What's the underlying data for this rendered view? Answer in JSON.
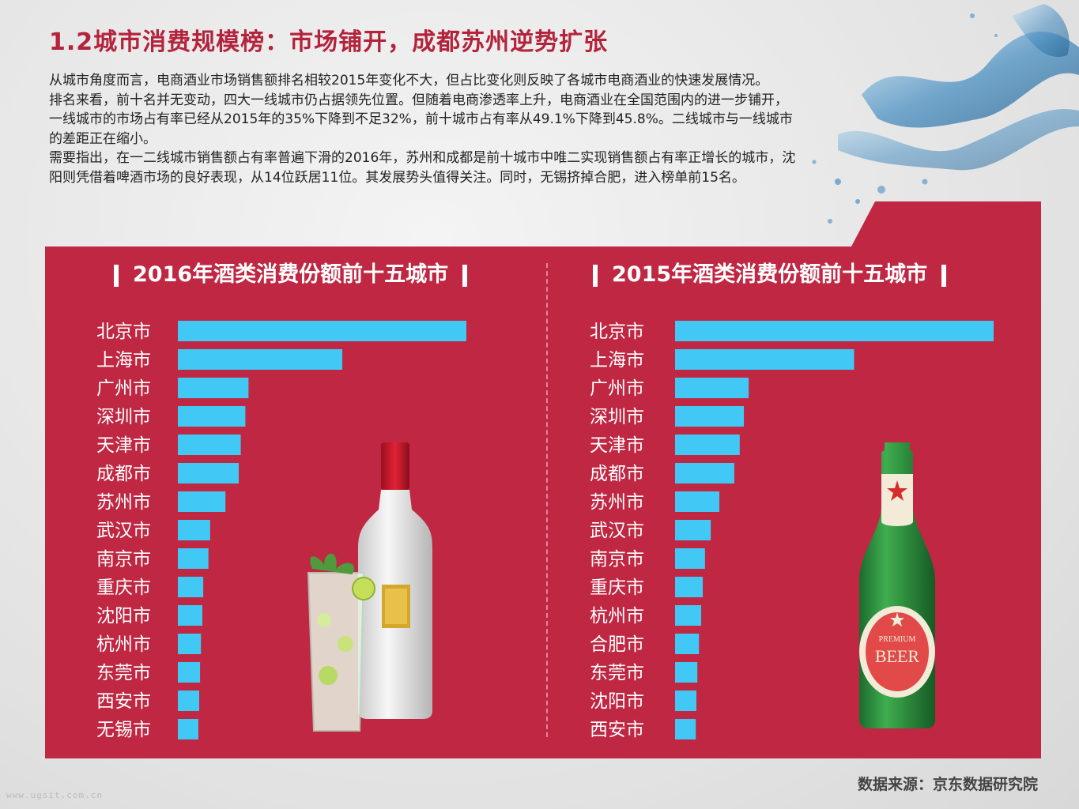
{
  "header": {
    "title": "1.2城市消费规模榜：市场铺开，成都苏州逆势扩张",
    "paragraphs": [
      "从城市角度而言，电商酒业市场销售额排名相较2015年变化不大，但占比变化则反映了各城市电商酒业的快速发展情况。",
      "排名来看，前十名并无变动，四大一线城市仍占据领先位置。但随着电商渗透率上升，电商酒业在全国范围内的进一步铺开，一线城市的市场占有率已经从2015年的35%下降到不足32%，前十城市占有率从49.1%下降到45.8%。二线城市与一线城市的差距正在缩小。",
      "需要指出，在一二线城市销售额占有率普遍下滑的2016年，苏州和成都是前十城市中唯二实现销售额占有率正增长的城市，沈阳则凭借着啤酒市场的良好表现，从14位跃居11位。其发展势头值得关注。同时，无锡挤掉合肥，进入榜单前15名。"
    ]
  },
  "footer": {
    "source": "数据来源：京东数据研究院",
    "watermark": "www.ugsit.com.cn"
  },
  "beer_label": {
    "top": "PREMIUM",
    "main": "BEER"
  },
  "colors": {
    "panel": "#bf2742",
    "bar": "#41c8f5",
    "title": "#b3243c"
  },
  "chart_data": [
    {
      "type": "bar",
      "orientation": "horizontal",
      "title": "2016年酒类消费份额前十五城市",
      "categories": [
        "北京市",
        "上海市",
        "广州市",
        "深圳市",
        "天津市",
        "成都市",
        "苏州市",
        "武汉市",
        "南京市",
        "重庆市",
        "沈阳市",
        "杭州市",
        "东莞市",
        "西安市",
        "无锡市"
      ],
      "values": [
        100,
        57,
        24.5,
        23.4,
        21.8,
        21.1,
        16.5,
        11.2,
        10.6,
        8.8,
        8.5,
        8.0,
        7.7,
        7.4,
        7.1
      ],
      "xlim": [
        0,
        100
      ],
      "grid": false
    },
    {
      "type": "bar",
      "orientation": "horizontal",
      "title": "2015年酒类消费份额前十五城市",
      "categories": [
        "北京市",
        "上海市",
        "广州市",
        "深圳市",
        "天津市",
        "成都市",
        "苏州市",
        "武汉市",
        "南京市",
        "重庆市",
        "杭州市",
        "合肥市",
        "东莞市",
        "沈阳市",
        "西安市"
      ],
      "values": [
        100,
        56.2,
        23.1,
        21.6,
        20.3,
        18.6,
        13.9,
        11.2,
        9.4,
        8.7,
        8.2,
        7.5,
        7.0,
        6.7,
        6.5
      ],
      "xlim": [
        0,
        100
      ],
      "grid": false
    }
  ]
}
